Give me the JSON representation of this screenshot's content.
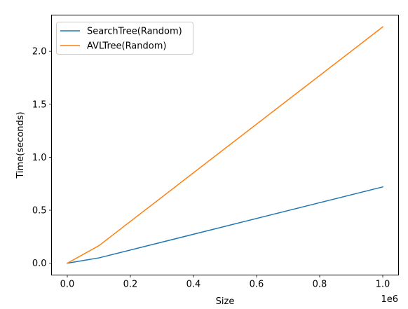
{
  "chart_data": {
    "type": "line",
    "title": "",
    "xlabel": "Size",
    "ylabel": "Time(seconds)",
    "x_offset_label": "1e6",
    "x_scale": 1000000,
    "xlim": [
      -50000,
      1050000
    ],
    "ylim": [
      -0.1115,
      2.3415
    ],
    "x_ticks": [
      0,
      200000,
      400000,
      600000,
      800000,
      1000000
    ],
    "x_tick_labels": [
      "0.0",
      "0.2",
      "0.4",
      "0.6",
      "0.8",
      "1.0"
    ],
    "y_ticks": [
      0.0,
      0.5,
      1.0,
      1.5,
      2.0
    ],
    "y_tick_labels": [
      "0.0",
      "0.5",
      "1.0",
      "1.5",
      "2.0"
    ],
    "x": [
      0,
      100000,
      1000000
    ],
    "series": [
      {
        "name": "SearchTree(Random)",
        "color": "#1f77b4",
        "values": [
          0.0,
          0.05,
          0.72
        ]
      },
      {
        "name": "AVLTree(Random)",
        "color": "#ff7f0e",
        "values": [
          0.0,
          0.165,
          2.23
        ]
      }
    ],
    "legend_position": "top-left",
    "grid": false
  }
}
